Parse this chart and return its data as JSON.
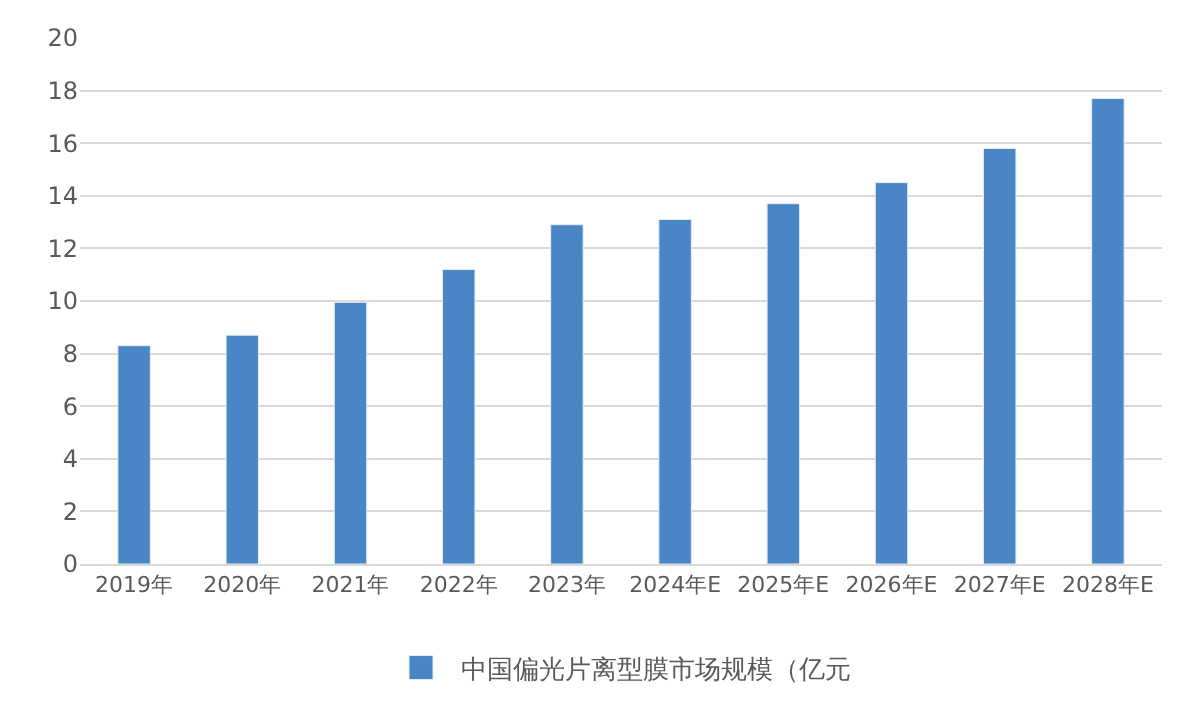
{
  "chart_data": {
    "type": "bar",
    "categories": [
      "2019年",
      "2020年",
      "2021年",
      "2022年",
      "2023年",
      "2024年E",
      "2025年E",
      "2026年E",
      "2027年E",
      "2028年E"
    ],
    "series": [
      {
        "name": "中国偏光片离型膜市场规模（亿元",
        "color": "#4a86c5",
        "values": [
          8.3,
          8.7,
          9.95,
          11.2,
          12.9,
          13.1,
          13.7,
          14.5,
          15.8,
          17.7
        ]
      }
    ],
    "ylim": [
      0,
      20
    ],
    "yticks": [
      0,
      2,
      4,
      6,
      8,
      10,
      12,
      14,
      16,
      18,
      20
    ],
    "grid": "y",
    "legend": "bottom"
  }
}
